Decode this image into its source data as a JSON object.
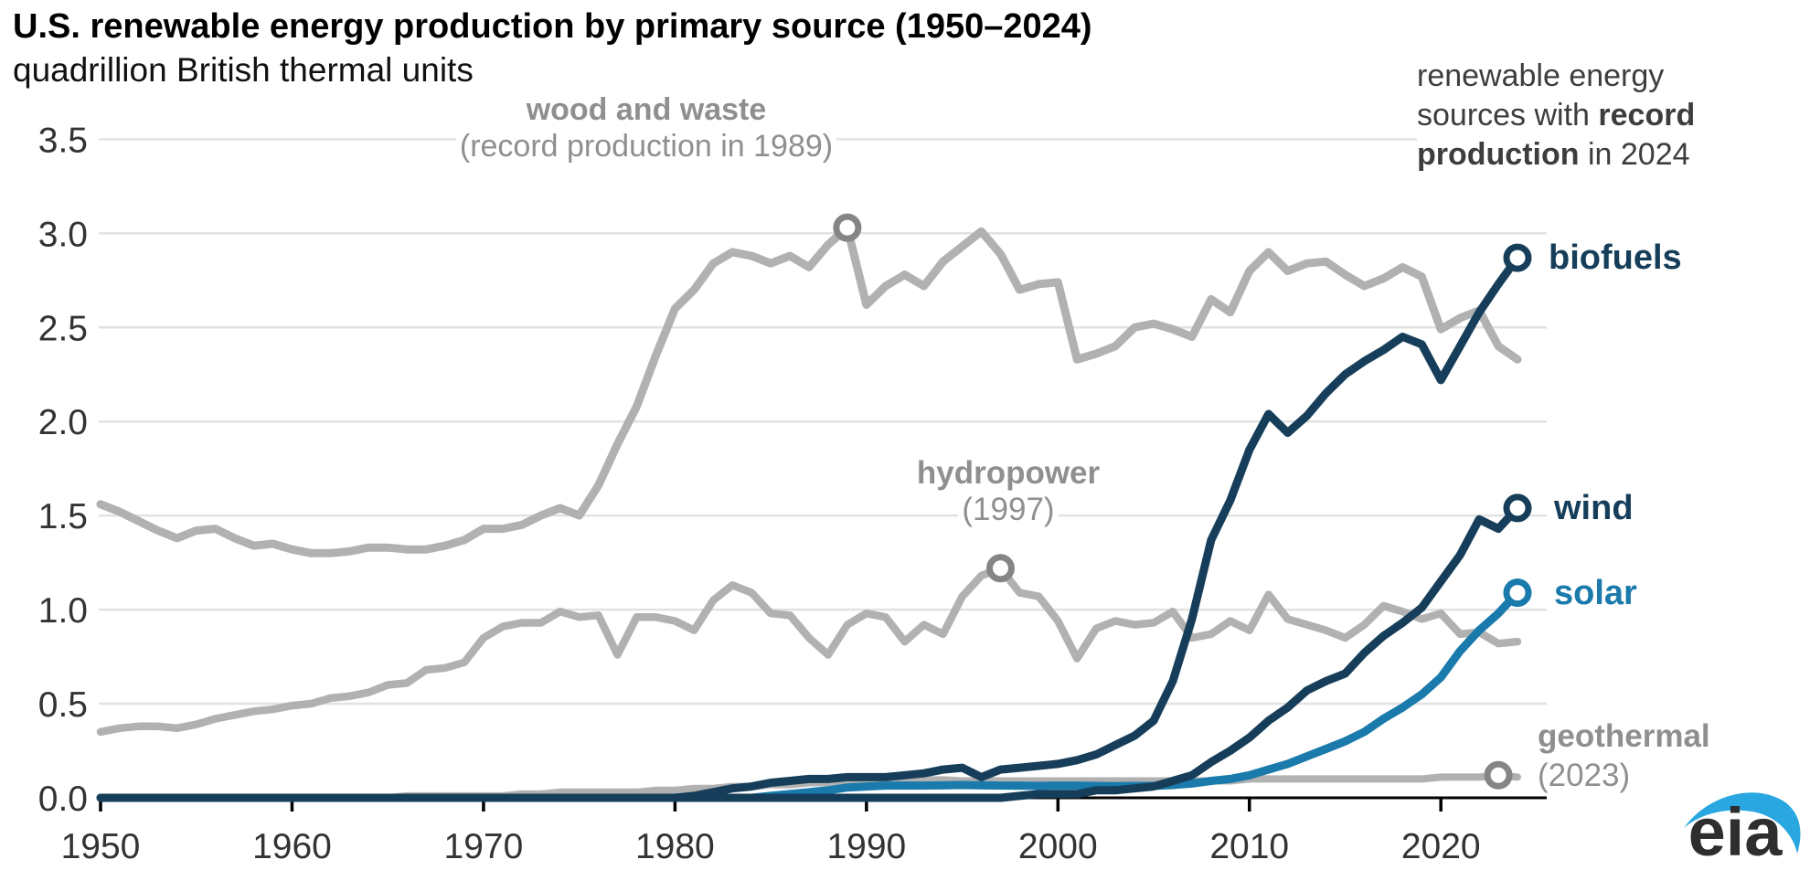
{
  "header": {
    "title": "U.S. renewable energy production by primary source (1950–2024)",
    "subtitle": "quadrillion British thermal units"
  },
  "annotations": {
    "wood": {
      "line1": "wood and waste",
      "line2": "(record production in 1989)"
    },
    "hydro": {
      "line1": "hydropower",
      "line2": "(1997)"
    },
    "geothermal": {
      "line1": "geothermal",
      "line2": "(2023)"
    },
    "note": {
      "line1": "renewable energy",
      "line2_normal": "sources with ",
      "line2_bold": "record",
      "line3_bold": "production",
      "line3_normal": " in 2024"
    }
  },
  "series_labels": {
    "biofuels": "biofuels",
    "wind": "wind",
    "solar": "solar"
  },
  "branding": {
    "logo_text": "eia"
  },
  "colors": {
    "navy": "#163e5a",
    "solar_blue": "#1a7aab",
    "line_gray": "#b1b1b1",
    "marker_gray": "#858585",
    "grid": "#e2e2e2",
    "axis": "#000000",
    "tick_label": "#333333",
    "eia_blue": "#2aa7e0",
    "eia_dark": "#2e2e2e"
  },
  "chart_data": {
    "type": "line",
    "title": "U.S. renewable energy production by primary source (1950–2024)",
    "ylabel": "quadrillion British thermal units",
    "x_start_year": 1950,
    "x_end_year": 2024,
    "ylim": [
      0,
      3.5
    ],
    "grid": true,
    "y_ticks": [
      "0.0",
      "0.5",
      "1.0",
      "1.5",
      "2.0",
      "2.5",
      "3.0",
      "3.5"
    ],
    "x_ticks": [
      "1950",
      "1960",
      "1970",
      "1980",
      "1990",
      "2000",
      "2010",
      "2020"
    ],
    "series": [
      {
        "name": "wood and waste",
        "color": "#b1b1b1",
        "width": 9,
        "start_year": 1950,
        "values": [
          1.56,
          1.52,
          1.47,
          1.42,
          1.38,
          1.42,
          1.43,
          1.38,
          1.34,
          1.35,
          1.32,
          1.3,
          1.3,
          1.31,
          1.33,
          1.33,
          1.32,
          1.32,
          1.34,
          1.37,
          1.43,
          1.43,
          1.45,
          1.5,
          1.54,
          1.5,
          1.66,
          1.88,
          2.08,
          2.35,
          2.6,
          2.7,
          2.84,
          2.9,
          2.88,
          2.84,
          2.88,
          2.82,
          2.94,
          3.03,
          2.62,
          2.72,
          2.78,
          2.72,
          2.85,
          2.93,
          3.01,
          2.89,
          2.7,
          2.73,
          2.74,
          2.33,
          2.36,
          2.4,
          2.5,
          2.52,
          2.49,
          2.45,
          2.65,
          2.58,
          2.8,
          2.9,
          2.8,
          2.84,
          2.85,
          2.78,
          2.72,
          2.76,
          2.82,
          2.77,
          2.49,
          2.55,
          2.59,
          2.4,
          2.33
        ]
      },
      {
        "name": "hydropower",
        "color": "#b1b1b1",
        "width": 8.5,
        "start_year": 1950,
        "values": [
          0.35,
          0.37,
          0.38,
          0.38,
          0.37,
          0.39,
          0.42,
          0.44,
          0.46,
          0.47,
          0.49,
          0.5,
          0.53,
          0.54,
          0.56,
          0.6,
          0.61,
          0.68,
          0.69,
          0.72,
          0.85,
          0.91,
          0.93,
          0.93,
          0.99,
          0.96,
          0.97,
          0.76,
          0.96,
          0.96,
          0.94,
          0.89,
          1.05,
          1.13,
          1.09,
          0.98,
          0.97,
          0.85,
          0.76,
          0.92,
          0.98,
          0.96,
          0.83,
          0.92,
          0.87,
          1.07,
          1.18,
          1.22,
          1.09,
          1.07,
          0.94,
          0.74,
          0.9,
          0.94,
          0.92,
          0.93,
          0.99,
          0.85,
          0.87,
          0.94,
          0.89,
          1.08,
          0.95,
          0.92,
          0.89,
          0.85,
          0.92,
          1.02,
          0.99,
          0.95,
          0.98,
          0.87,
          0.88,
          0.82,
          0.83
        ]
      },
      {
        "name": "geothermal",
        "color": "#b1b1b1",
        "width": 8,
        "start_year": 1950,
        "values": [
          0.0,
          0.0,
          0.0,
          0.0,
          0.0,
          0.0,
          0.0,
          0.0,
          0.0,
          0.0,
          0.0,
          0.0,
          0.0,
          0.0,
          0.0,
          0.0,
          0.01,
          0.01,
          0.01,
          0.01,
          0.01,
          0.01,
          0.02,
          0.02,
          0.03,
          0.03,
          0.03,
          0.03,
          0.03,
          0.04,
          0.04,
          0.05,
          0.05,
          0.06,
          0.06,
          0.07,
          0.07,
          0.08,
          0.08,
          0.08,
          0.09,
          0.09,
          0.095,
          0.095,
          0.095,
          0.09,
          0.09,
          0.09,
          0.09,
          0.09,
          0.09,
          0.09,
          0.09,
          0.09,
          0.09,
          0.09,
          0.09,
          0.09,
          0.09,
          0.09,
          0.1,
          0.1,
          0.1,
          0.1,
          0.1,
          0.1,
          0.1,
          0.1,
          0.1,
          0.1,
          0.11,
          0.11,
          0.11,
          0.12,
          0.11
        ]
      },
      {
        "name": "solar",
        "color": "#1a7aab",
        "width": 9,
        "start_year": 1950,
        "values": [
          0.0,
          0.0,
          0.0,
          0.0,
          0.0,
          0.0,
          0.0,
          0.0,
          0.0,
          0.0,
          0.0,
          0.0,
          0.0,
          0.0,
          0.0,
          0.0,
          0.0,
          0.0,
          0.0,
          0.0,
          0.0,
          0.0,
          0.0,
          0.0,
          0.0,
          0.0,
          0.0,
          0.0,
          0.0,
          0.0,
          0.0,
          0.0,
          0.0,
          0.0,
          0.0,
          0.01,
          0.02,
          0.03,
          0.04,
          0.055,
          0.06,
          0.065,
          0.065,
          0.065,
          0.066,
          0.068,
          0.066,
          0.065,
          0.064,
          0.063,
          0.065,
          0.064,
          0.063,
          0.062,
          0.063,
          0.063,
          0.068,
          0.076,
          0.09,
          0.1,
          0.12,
          0.15,
          0.18,
          0.22,
          0.26,
          0.3,
          0.35,
          0.42,
          0.48,
          0.55,
          0.64,
          0.78,
          0.89,
          0.98,
          1.09
        ]
      },
      {
        "name": "biofuels",
        "color": "#163e5a",
        "width": 9,
        "start_year": 1950,
        "values": [
          0.0,
          0.0,
          0.0,
          0.0,
          0.0,
          0.0,
          0.0,
          0.0,
          0.0,
          0.0,
          0.0,
          0.0,
          0.0,
          0.0,
          0.0,
          0.0,
          0.0,
          0.0,
          0.0,
          0.0,
          0.0,
          0.0,
          0.0,
          0.0,
          0.0,
          0.0,
          0.0,
          0.0,
          0.0,
          0.0,
          0.0,
          0.01,
          0.03,
          0.05,
          0.06,
          0.08,
          0.09,
          0.1,
          0.1,
          0.11,
          0.11,
          0.11,
          0.12,
          0.13,
          0.15,
          0.16,
          0.11,
          0.15,
          0.16,
          0.17,
          0.18,
          0.2,
          0.23,
          0.28,
          0.33,
          0.41,
          0.62,
          0.95,
          1.37,
          1.58,
          1.85,
          2.04,
          1.94,
          2.03,
          2.15,
          2.25,
          2.32,
          2.38,
          2.45,
          2.41,
          2.22,
          2.4,
          2.58,
          2.73,
          2.87
        ]
      },
      {
        "name": "wind",
        "color": "#163e5a",
        "width": 9,
        "start_year": 1950,
        "values": [
          0.0,
          0.0,
          0.0,
          0.0,
          0.0,
          0.0,
          0.0,
          0.0,
          0.0,
          0.0,
          0.0,
          0.0,
          0.0,
          0.0,
          0.0,
          0.0,
          0.0,
          0.0,
          0.0,
          0.0,
          0.0,
          0.0,
          0.0,
          0.0,
          0.0,
          0.0,
          0.0,
          0.0,
          0.0,
          0.0,
          0.0,
          0.0,
          0.0,
          0.0,
          0.0,
          0.0,
          0.0,
          0.0,
          0.0,
          0.0,
          0.0,
          0.0,
          0.0,
          0.0,
          0.0,
          0.0,
          0.0,
          0.0,
          0.01,
          0.02,
          0.02,
          0.02,
          0.04,
          0.04,
          0.05,
          0.06,
          0.09,
          0.12,
          0.19,
          0.25,
          0.32,
          0.41,
          0.48,
          0.57,
          0.62,
          0.66,
          0.77,
          0.86,
          0.93,
          1.01,
          1.15,
          1.29,
          1.48,
          1.43,
          1.54
        ]
      }
    ],
    "record_markers": [
      {
        "series": "wood and waste",
        "year": 1989,
        "value": 3.03,
        "color": "#858585"
      },
      {
        "series": "hydropower",
        "year": 1997,
        "value": 1.22,
        "color": "#858585"
      },
      {
        "series": "geothermal",
        "year": 2023,
        "value": 0.12,
        "color": "#858585"
      },
      {
        "series": "biofuels",
        "year": 2024,
        "value": 2.87,
        "color": "#163e5a"
      },
      {
        "series": "wind",
        "year": 2024,
        "value": 1.54,
        "color": "#163e5a"
      },
      {
        "series": "solar",
        "year": 2024,
        "value": 1.09,
        "color": "#1a7aab"
      }
    ],
    "legend_position": "right-inline"
  }
}
